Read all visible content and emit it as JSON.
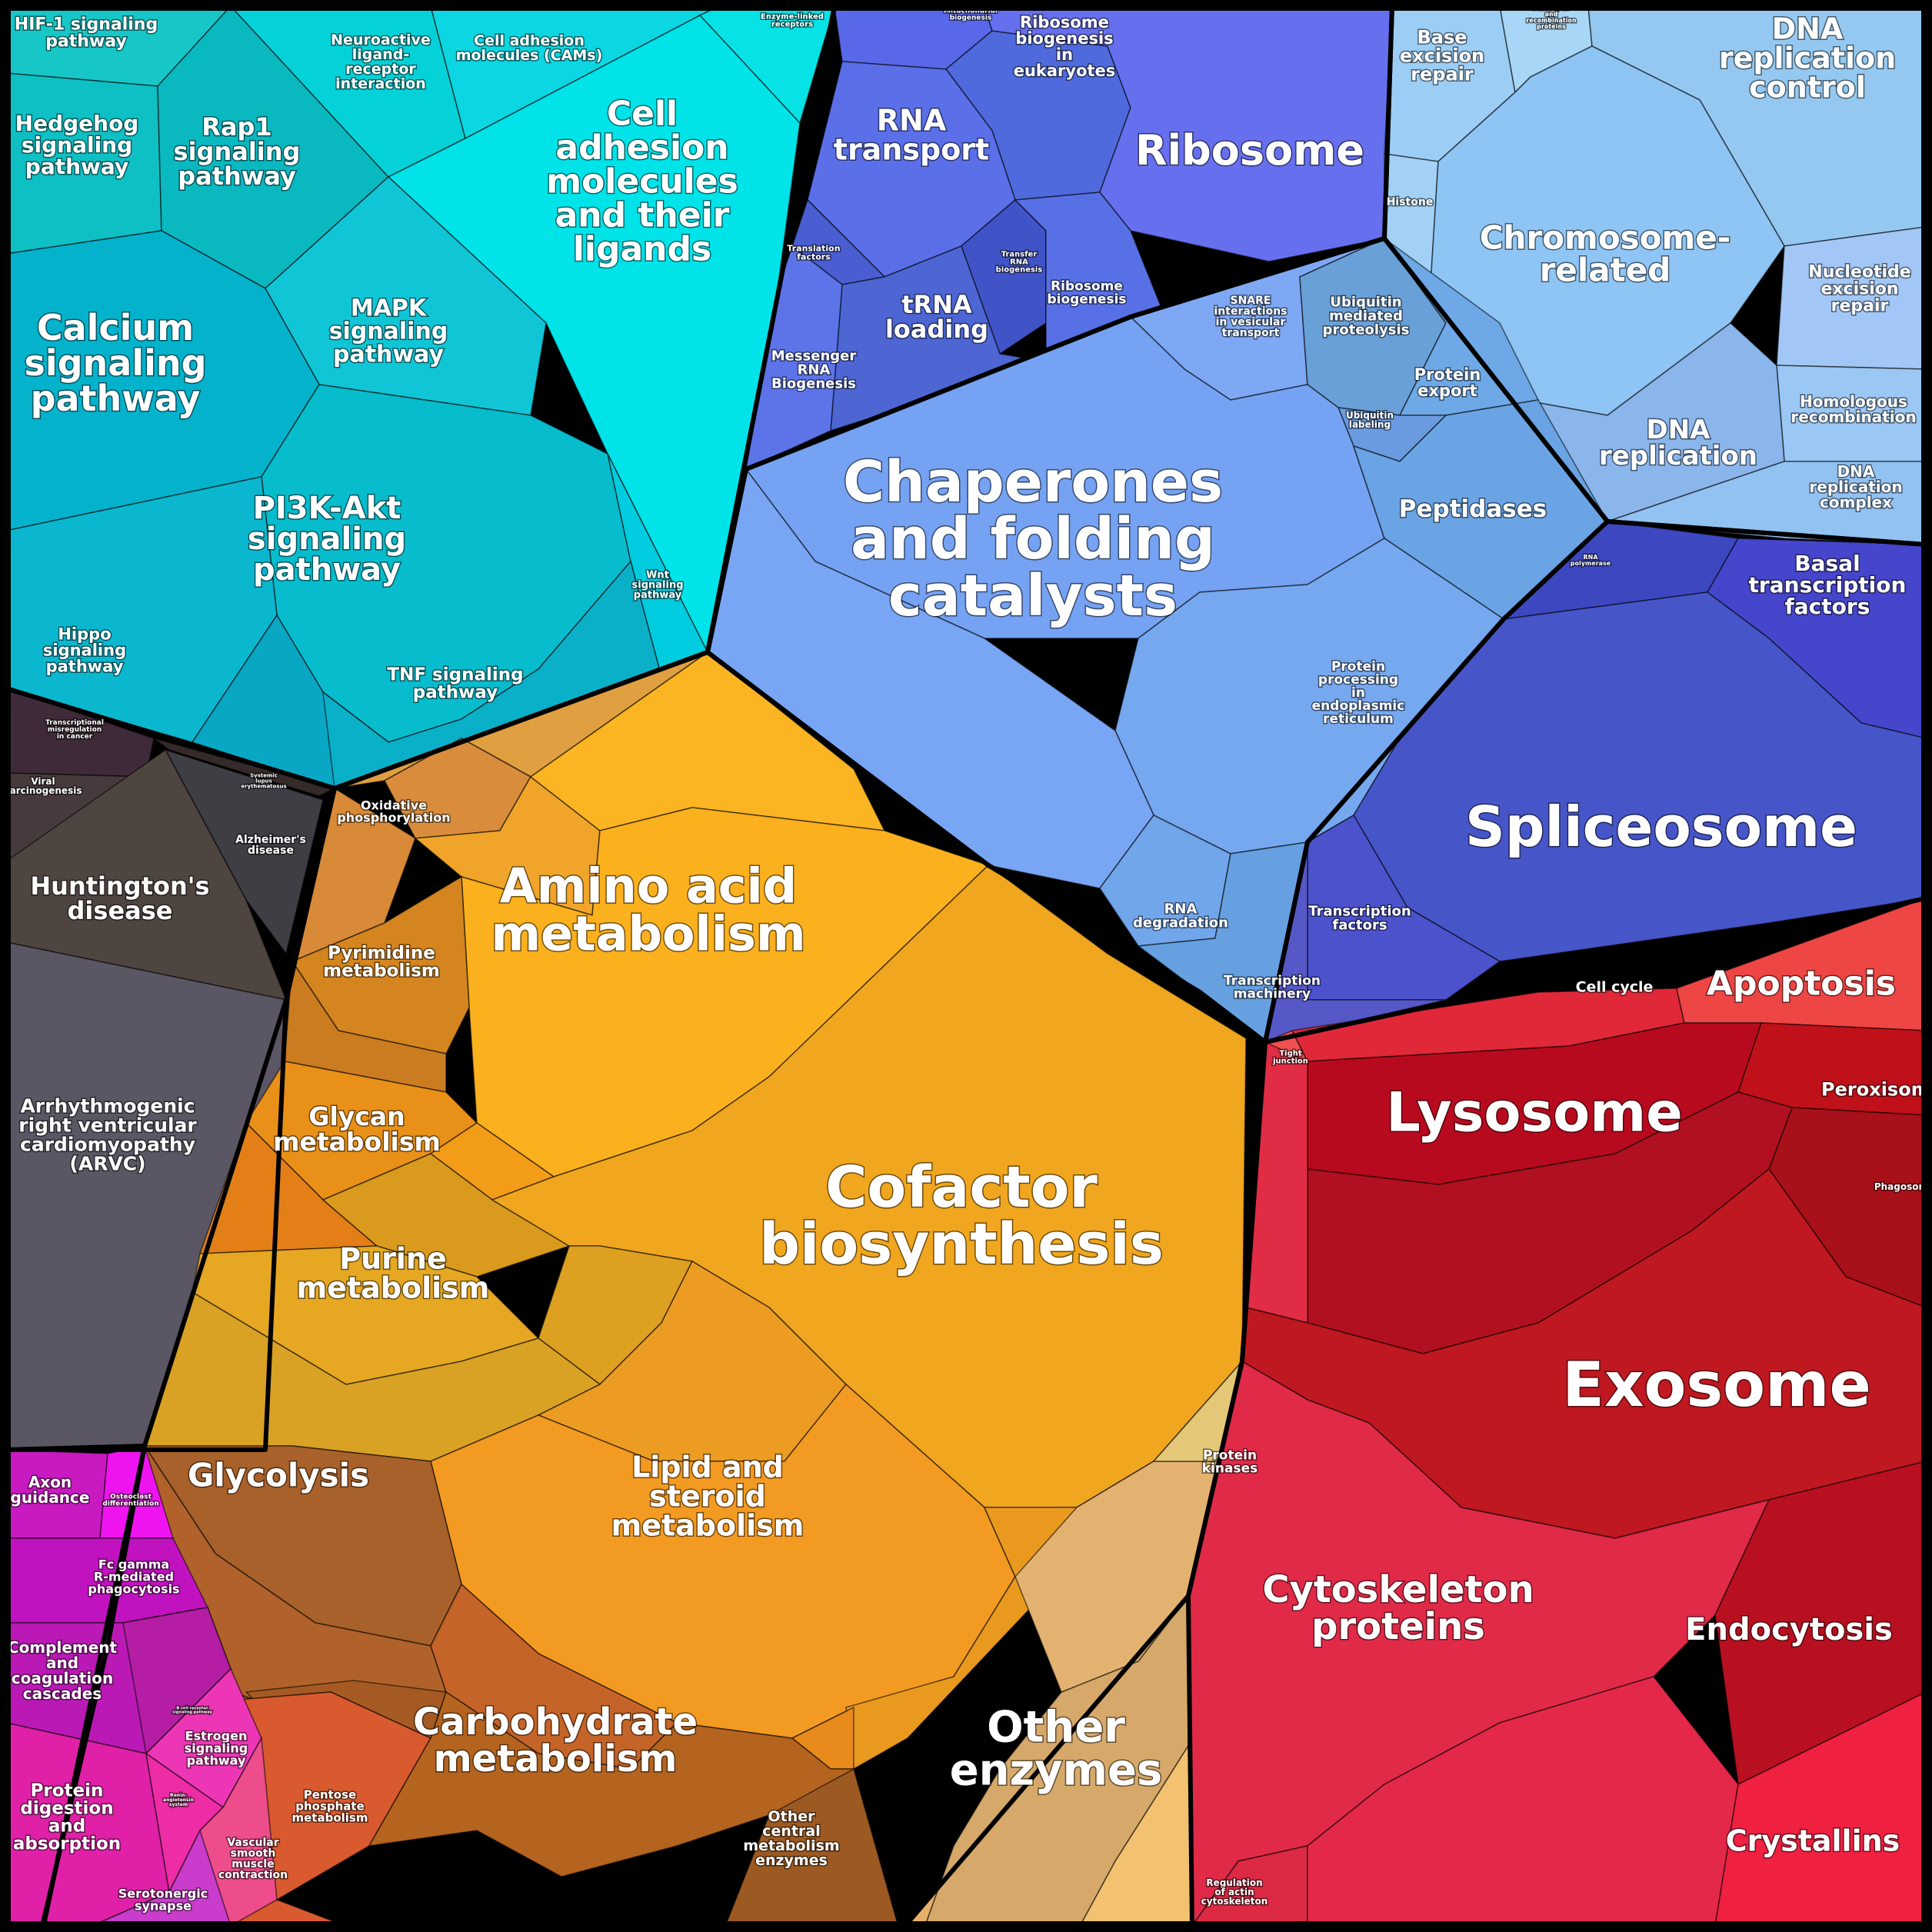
{
  "diagram": {
    "type": "voronoi-treemap",
    "groups": [
      {
        "id": "signaling",
        "color": "#00c9d6",
        "labels": [
          "HIF-1 signaling pathway",
          "Hedgehog signaling pathway",
          "Rap1 signaling pathway",
          "Neuroactive ligand-receptor interaction",
          "Cell adhesion molecules (CAMs)",
          "Enzyme-linked receptors",
          "Cell adhesion molecules and their ligands",
          "MAPK signaling pathway",
          "Calcium signaling pathway",
          "PI3K-Akt signaling pathway",
          "Wnt signaling pathway",
          "Hippo signaling pathway",
          "TNF signaling pathway"
        ]
      },
      {
        "id": "genetic-info",
        "color": "#5a73ee",
        "labels": [
          "Mitochondrial biogenesis",
          "Ribosome biogenesis in eukaryotes",
          "RNA transport",
          "Ribosome",
          "Translation factors",
          "Transfer RNA biogenesis",
          "tRNA loading",
          "Ribosome biogenesis",
          "Messenger RNA Biogenesis"
        ]
      },
      {
        "id": "dna",
        "color": "#8ecbf5",
        "labels": [
          "Base excision repair",
          "DNA repair and recombination proteins",
          "DNA replication control",
          "Histone",
          "Chromosome-related",
          "Nucleotide excision repair",
          "Homologous recombination",
          "DNA replication",
          "DNA replication complex"
        ]
      },
      {
        "id": "folding",
        "color": "#7aa3f4",
        "labels": [
          "SNARE interactions in vesicular transport",
          "Ubiquitin mediated proteolysis",
          "Protein export",
          "Ubiquitin labeling",
          "Chaperones and folding catalysts",
          "Peptidases",
          "Protein processing in endoplasmic reticulum",
          "RNA degradation"
        ]
      },
      {
        "id": "transcription",
        "color": "#4451c9",
        "labels": [
          "RNA polymerase",
          "Basal transcription factors",
          "Spliceosome",
          "Transcription factors",
          "Transcription machinery"
        ]
      },
      {
        "id": "disease",
        "color": "#3f3a3d",
        "labels": [
          "Transcriptional misregulation in cancer",
          "Viral carcinogenesis",
          "Systemic lupus erythematosus",
          "Alzheimer's disease",
          "Huntington's disease",
          "Arrhythmogenic right ventricular cardiomyopathy (ARVC)"
        ]
      },
      {
        "id": "metabolism",
        "color": "#f0a21e",
        "labels": [
          "Oxidative phosphorylation",
          "Amino acid metabolism",
          "Pyrimidine metabolism",
          "Glycan metabolism",
          "Cofactor biosynthesis",
          "Purine metabolism",
          "Lipid and steroid metabolism",
          "Glycolysis",
          "Carbohydrate metabolism",
          "Pentose phosphate metabolism",
          "Other central metabolism enzymes",
          "Protein kinases",
          "Other enzymes"
        ]
      },
      {
        "id": "cellular",
        "color": "#c8102a",
        "labels": [
          "Cell cycle",
          "Apoptosis",
          "Tight junction",
          "Lysosome",
          "Peroxisome",
          "Phagosome",
          "Exosome",
          "Cytoskeleton proteins",
          "Endocytosis",
          "Regulation of actin cytoskeleton",
          "Crystallins"
        ]
      },
      {
        "id": "organismal",
        "color": "#d21fc4",
        "labels": [
          "Axon guidance",
          "Osteoclast differentiation",
          "Fc gamma R-mediated phagocytosis",
          "Complement and coagulation cascades",
          "B cell receptor signaling pathway",
          "Estrogen signaling pathway",
          "Protein digestion and absorption",
          "Renin-angiotensin system",
          "Vascular smooth muscle contraction",
          "Serotonergic synapse"
        ]
      }
    ]
  },
  "labels": {
    "hif1": [
      "HIF-1 signaling",
      "pathway"
    ],
    "hedgehog": [
      "Hedgehog",
      "signaling",
      "pathway"
    ],
    "rap1": [
      "Rap1",
      "signaling",
      "pathway"
    ],
    "neuroactive": [
      "Neuroactive",
      "ligand-",
      "receptor",
      "interaction"
    ],
    "cams": [
      "Cell adhesion",
      "molecules (CAMs)"
    ],
    "enzyme_linked": [
      "Enzyme-linked",
      "receptors"
    ],
    "cell_adhesion": [
      "Cell",
      "adhesion",
      "molecules",
      "and their",
      "ligands"
    ],
    "mapk": [
      "MAPK",
      "signaling",
      "pathway"
    ],
    "calcium": [
      "Calcium",
      "signaling",
      "pathway"
    ],
    "pi3k": [
      "PI3K-Akt",
      "signaling",
      "pathway"
    ],
    "wnt": [
      "Wnt",
      "signaling",
      "pathway"
    ],
    "hippo": [
      "Hippo",
      "signaling",
      "pathway"
    ],
    "tnf": [
      "TNF signaling",
      "pathway"
    ],
    "mito_bio": [
      "Mitochondrial",
      "biogenesis"
    ],
    "ribo_bio_euk": [
      "Ribosome",
      "biogenesis",
      "in",
      "eukaryotes"
    ],
    "rna_transport": [
      "RNA",
      "transport"
    ],
    "ribosome": [
      "Ribosome"
    ],
    "translation_factors": [
      "Translation",
      "factors"
    ],
    "trna_bio": [
      "Transfer",
      "RNA",
      "biogenesis"
    ],
    "trna_loading": [
      "tRNA",
      "loading"
    ],
    "ribo_bio": [
      "Ribosome",
      "biogenesis"
    ],
    "mrna_bio": [
      "Messenger",
      "RNA",
      "Biogenesis"
    ],
    "base_excision": [
      "Base",
      "excision",
      "repair"
    ],
    "dna_repair_rec": [
      "DNA repair",
      "and",
      "recombination",
      "proteins"
    ],
    "dna_rep_control": [
      "DNA",
      "replication",
      "control"
    ],
    "histone": [
      "Histone"
    ],
    "chromosome": [
      "Chromosome-",
      "related"
    ],
    "nucleotide_excision": [
      "Nucleotide",
      "excision",
      "repair"
    ],
    "homologous": [
      "Homologous",
      "recombination"
    ],
    "dna_replication": [
      "DNA",
      "replication"
    ],
    "dna_rep_complex": [
      "DNA",
      "replication",
      "complex"
    ],
    "snare": [
      "SNARE",
      "interactions",
      "in vesicular",
      "transport"
    ],
    "ubiquitin_prot": [
      "Ubiquitin",
      "mediated",
      "proteolysis"
    ],
    "protein_export": [
      "Protein",
      "export"
    ],
    "ubiquitin_label": [
      "Ubiquitin",
      "labeling"
    ],
    "chaperones": [
      "Chaperones",
      "and folding",
      "catalysts"
    ],
    "peptidases": [
      "Peptidases"
    ],
    "protein_er": [
      "Protein",
      "processing",
      "in",
      "endoplasmic",
      "reticulum"
    ],
    "rna_degradation": [
      "RNA",
      "degradation"
    ],
    "rna_polymerase": [
      "RNA",
      "polymerase"
    ],
    "basal_tf": [
      "Basal",
      "transcription",
      "factors"
    ],
    "spliceosome": [
      "Spliceosome"
    ],
    "transcription_factors": [
      "Transcription",
      "factors"
    ],
    "transcription_machinery": [
      "Transcription",
      "machinery"
    ],
    "tx_misreg": [
      "Transcriptional",
      "misregulation",
      "in cancer"
    ],
    "viral_carc": [
      "Viral",
      "carcinogenesis"
    ],
    "sle": [
      "Systemic",
      "lupus",
      "erythematosus"
    ],
    "alzheimers": [
      "Alzheimer's",
      "disease"
    ],
    "huntingtons": [
      "Huntington's",
      "disease"
    ],
    "arvc": [
      "Arrhythmogenic",
      "right ventricular",
      "cardiomyopathy",
      "(ARVC)"
    ],
    "oxphos": [
      "Oxidative",
      "phosphorylation"
    ],
    "amino_acid": [
      "Amino acid",
      "metabolism"
    ],
    "pyrimidine": [
      "Pyrimidine",
      "metabolism"
    ],
    "glycan": [
      "Glycan",
      "metabolism"
    ],
    "cofactor": [
      "Cofactor",
      "biosynthesis"
    ],
    "purine": [
      "Purine",
      "metabolism"
    ],
    "lipid": [
      "Lipid and",
      "steroid",
      "metabolism"
    ],
    "glycolysis": [
      "Glycolysis"
    ],
    "carbohydrate": [
      "Carbohydrate",
      "metabolism"
    ],
    "pentose": [
      "Pentose",
      "phosphate",
      "metabolism"
    ],
    "other_central": [
      "Other",
      "central",
      "metabolism",
      "enzymes"
    ],
    "protein_kinases": [
      "Protein",
      "kinases"
    ],
    "other_enzymes": [
      "Other",
      "enzymes"
    ],
    "cell_cycle": [
      "Cell cycle"
    ],
    "apoptosis": [
      "Apoptosis"
    ],
    "tight_junction": [
      "Tight",
      "junction"
    ],
    "lysosome": [
      "Lysosome"
    ],
    "peroxisome": [
      "Peroxisome"
    ],
    "phagosome": [
      "Phagosome"
    ],
    "exosome": [
      "Exosome"
    ],
    "cytoskeleton": [
      "Cytoskeleton",
      "proteins"
    ],
    "endocytosis": [
      "Endocytosis"
    ],
    "actin_reg": [
      "Regulation",
      "of actin",
      "cytoskeleton"
    ],
    "crystallins": [
      "Crystallins"
    ],
    "axon": [
      "Axon",
      "guidance"
    ],
    "osteoclast": [
      "Osteoclast",
      "differentiation"
    ],
    "fc_gamma": [
      "Fc gamma",
      "R-mediated",
      "phagocytosis"
    ],
    "complement": [
      "Complement",
      "and",
      "coagulation",
      "cascades"
    ],
    "b_cell": [
      "B cell receptor",
      "signaling pathway"
    ],
    "estrogen": [
      "Estrogen",
      "signaling",
      "pathway"
    ],
    "protein_digestion": [
      "Protein",
      "digestion",
      "and",
      "absorption"
    ],
    "renin": [
      "Renin-",
      "angiotensin",
      "system"
    ],
    "vascular": [
      "Vascular",
      "smooth",
      "muscle",
      "contraction"
    ],
    "serotonergic": [
      "Serotonergic",
      "synapse"
    ]
  }
}
